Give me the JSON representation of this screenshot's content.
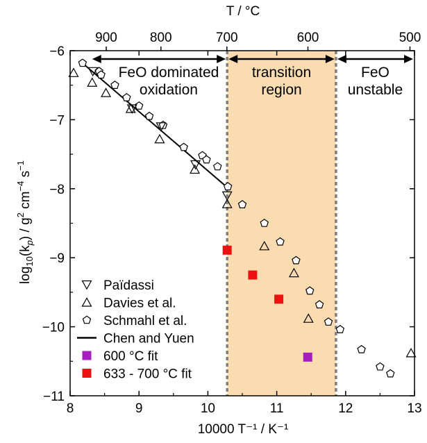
{
  "chart_data": {
    "type": "scatter",
    "title": "",
    "xlabel": "10000 T⁻¹ / K⁻¹",
    "ylabel_parts": [
      "log",
      "10",
      "(k",
      "p",
      ") / g",
      "2",
      " cm",
      "−4",
      " s",
      "−1"
    ],
    "top_axis_label": "T / °C",
    "xlim": [
      8,
      13
    ],
    "ylim": [
      -11,
      -6
    ],
    "x_ticks": [
      8,
      9,
      10,
      11,
      12,
      13
    ],
    "y_ticks": [
      -6,
      -7,
      -8,
      -9,
      -10,
      -11
    ],
    "top_ticks_celsius": [
      900,
      800,
      700,
      600,
      500
    ],
    "grid": false,
    "legend_position": "lower-left",
    "regions": {
      "transition": {
        "x_range": [
          10.28,
          11.86
        ],
        "fill": "#fbdcb1",
        "boundary_color": "#7f7f7f"
      },
      "annotations": [
        {
          "label_lines": [
            "FeO dominated",
            "oxidation"
          ],
          "x_from": 8.3,
          "x_to": 10.28
        },
        {
          "label_lines": [
            "transition",
            "region"
          ],
          "x_from": 10.28,
          "x_to": 11.86
        },
        {
          "label_lines": [
            "FeO",
            "unstable"
          ],
          "x_from": 11.86,
          "x_to": 13.0
        }
      ]
    },
    "series": [
      {
        "name": "Païdassi",
        "marker": "triangle-down",
        "color": "#000000",
        "points": [
          [
            8.33,
            -6.3
          ],
          [
            8.9,
            -6.84
          ],
          [
            9.32,
            -7.1
          ],
          [
            9.82,
            -7.65
          ],
          [
            10.28,
            -8.1
          ]
        ]
      },
      {
        "name": "Davies et al.",
        "marker": "triangle-up",
        "color": "#000000",
        "points": [
          [
            8.05,
            -6.32
          ],
          [
            8.32,
            -6.46
          ],
          [
            8.52,
            -6.61
          ],
          [
            8.88,
            -6.84
          ],
          [
            9.3,
            -7.28
          ],
          [
            9.81,
            -7.72
          ],
          [
            10.28,
            -8.22
          ],
          [
            10.82,
            -8.83
          ],
          [
            11.25,
            -9.22
          ],
          [
            11.46,
            -9.88
          ],
          [
            12.95,
            -10.38
          ]
        ]
      },
      {
        "name": "Schmahl et al.",
        "marker": "pentagon",
        "color": "#000000",
        "points": [
          [
            8.18,
            -6.18
          ],
          [
            8.42,
            -6.3
          ],
          [
            8.45,
            -6.35
          ],
          [
            8.65,
            -6.5
          ],
          [
            8.82,
            -6.68
          ],
          [
            9.0,
            -6.8
          ],
          [
            9.15,
            -6.95
          ],
          [
            9.35,
            -7.08
          ],
          [
            9.65,
            -7.4
          ],
          [
            9.92,
            -7.52
          ],
          [
            9.98,
            -7.58
          ],
          [
            10.14,
            -7.68
          ],
          [
            10.29,
            -7.97
          ],
          [
            10.5,
            -8.23
          ],
          [
            10.82,
            -8.5
          ],
          [
            11.05,
            -8.77
          ],
          [
            11.28,
            -9.04
          ],
          [
            11.48,
            -9.48
          ],
          [
            11.62,
            -9.68
          ],
          [
            11.75,
            -9.93
          ],
          [
            11.92,
            -10.04
          ],
          [
            12.23,
            -10.33
          ],
          [
            12.5,
            -10.58
          ],
          [
            12.65,
            -10.68
          ]
        ]
      },
      {
        "name": "Chen and Yuen",
        "marker": "line",
        "color": "#000000",
        "points": [
          [
            8.18,
            -6.18
          ],
          [
            10.28,
            -7.98
          ]
        ]
      },
      {
        "name": "600 °C fit",
        "marker": "square",
        "color": "#a51dbd",
        "points": [
          [
            11.45,
            -10.44
          ]
        ]
      },
      {
        "name": "633 - 700 °C fit",
        "marker": "square",
        "color": "#ee1111",
        "points": [
          [
            10.28,
            -8.89
          ],
          [
            10.65,
            -9.25
          ],
          [
            11.03,
            -9.6
          ]
        ]
      }
    ]
  }
}
